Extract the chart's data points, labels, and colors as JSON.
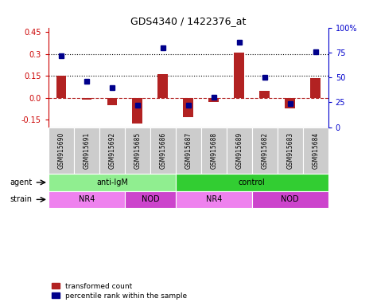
{
  "title": "GDS4340 / 1422376_at",
  "samples": [
    "GSM915690",
    "GSM915691",
    "GSM915692",
    "GSM915685",
    "GSM915686",
    "GSM915687",
    "GSM915688",
    "GSM915689",
    "GSM915682",
    "GSM915683",
    "GSM915684"
  ],
  "transformed_count": [
    0.15,
    -0.01,
    -0.05,
    -0.175,
    0.16,
    -0.13,
    -0.03,
    0.31,
    0.05,
    -0.07,
    0.135
  ],
  "percentile_rank": [
    72,
    46,
    40,
    22,
    80,
    22,
    30,
    85,
    50,
    24,
    76
  ],
  "ylim_left": [
    -0.2,
    0.48
  ],
  "ylim_right": [
    0,
    100
  ],
  "yticks_left": [
    -0.15,
    0.0,
    0.15,
    0.3,
    0.45
  ],
  "yticks_right": [
    0,
    25,
    50,
    75,
    100
  ],
  "hlines_dotted": [
    0.15,
    0.3
  ],
  "hline_dash": 0.0,
  "bar_color": "#B22222",
  "dot_color": "#00008B",
  "agent_groups": [
    {
      "label": "anti-IgM",
      "start": 0,
      "end": 5,
      "color": "#90EE90"
    },
    {
      "label": "control",
      "start": 5,
      "end": 11,
      "color": "#32CD32"
    }
  ],
  "strain_groups": [
    {
      "label": "NR4",
      "start": 0,
      "end": 3,
      "color": "#EE82EE"
    },
    {
      "label": "NOD",
      "start": 3,
      "end": 5,
      "color": "#CC44CC"
    },
    {
      "label": "NR4",
      "start": 5,
      "end": 8,
      "color": "#EE82EE"
    },
    {
      "label": "NOD",
      "start": 8,
      "end": 11,
      "color": "#CC44CC"
    }
  ],
  "legend_items": [
    {
      "label": "transformed count",
      "color": "#B22222",
      "marker": "s"
    },
    {
      "label": "percentile rank within the sample",
      "color": "#00008B",
      "marker": "s"
    }
  ],
  "agent_label": "agent",
  "strain_label": "strain",
  "left_axis_color": "#CC0000",
  "right_axis_color": "#0000CC",
  "bar_width": 0.4,
  "dot_size": 5,
  "label_bg_color": "#CCCCCC"
}
